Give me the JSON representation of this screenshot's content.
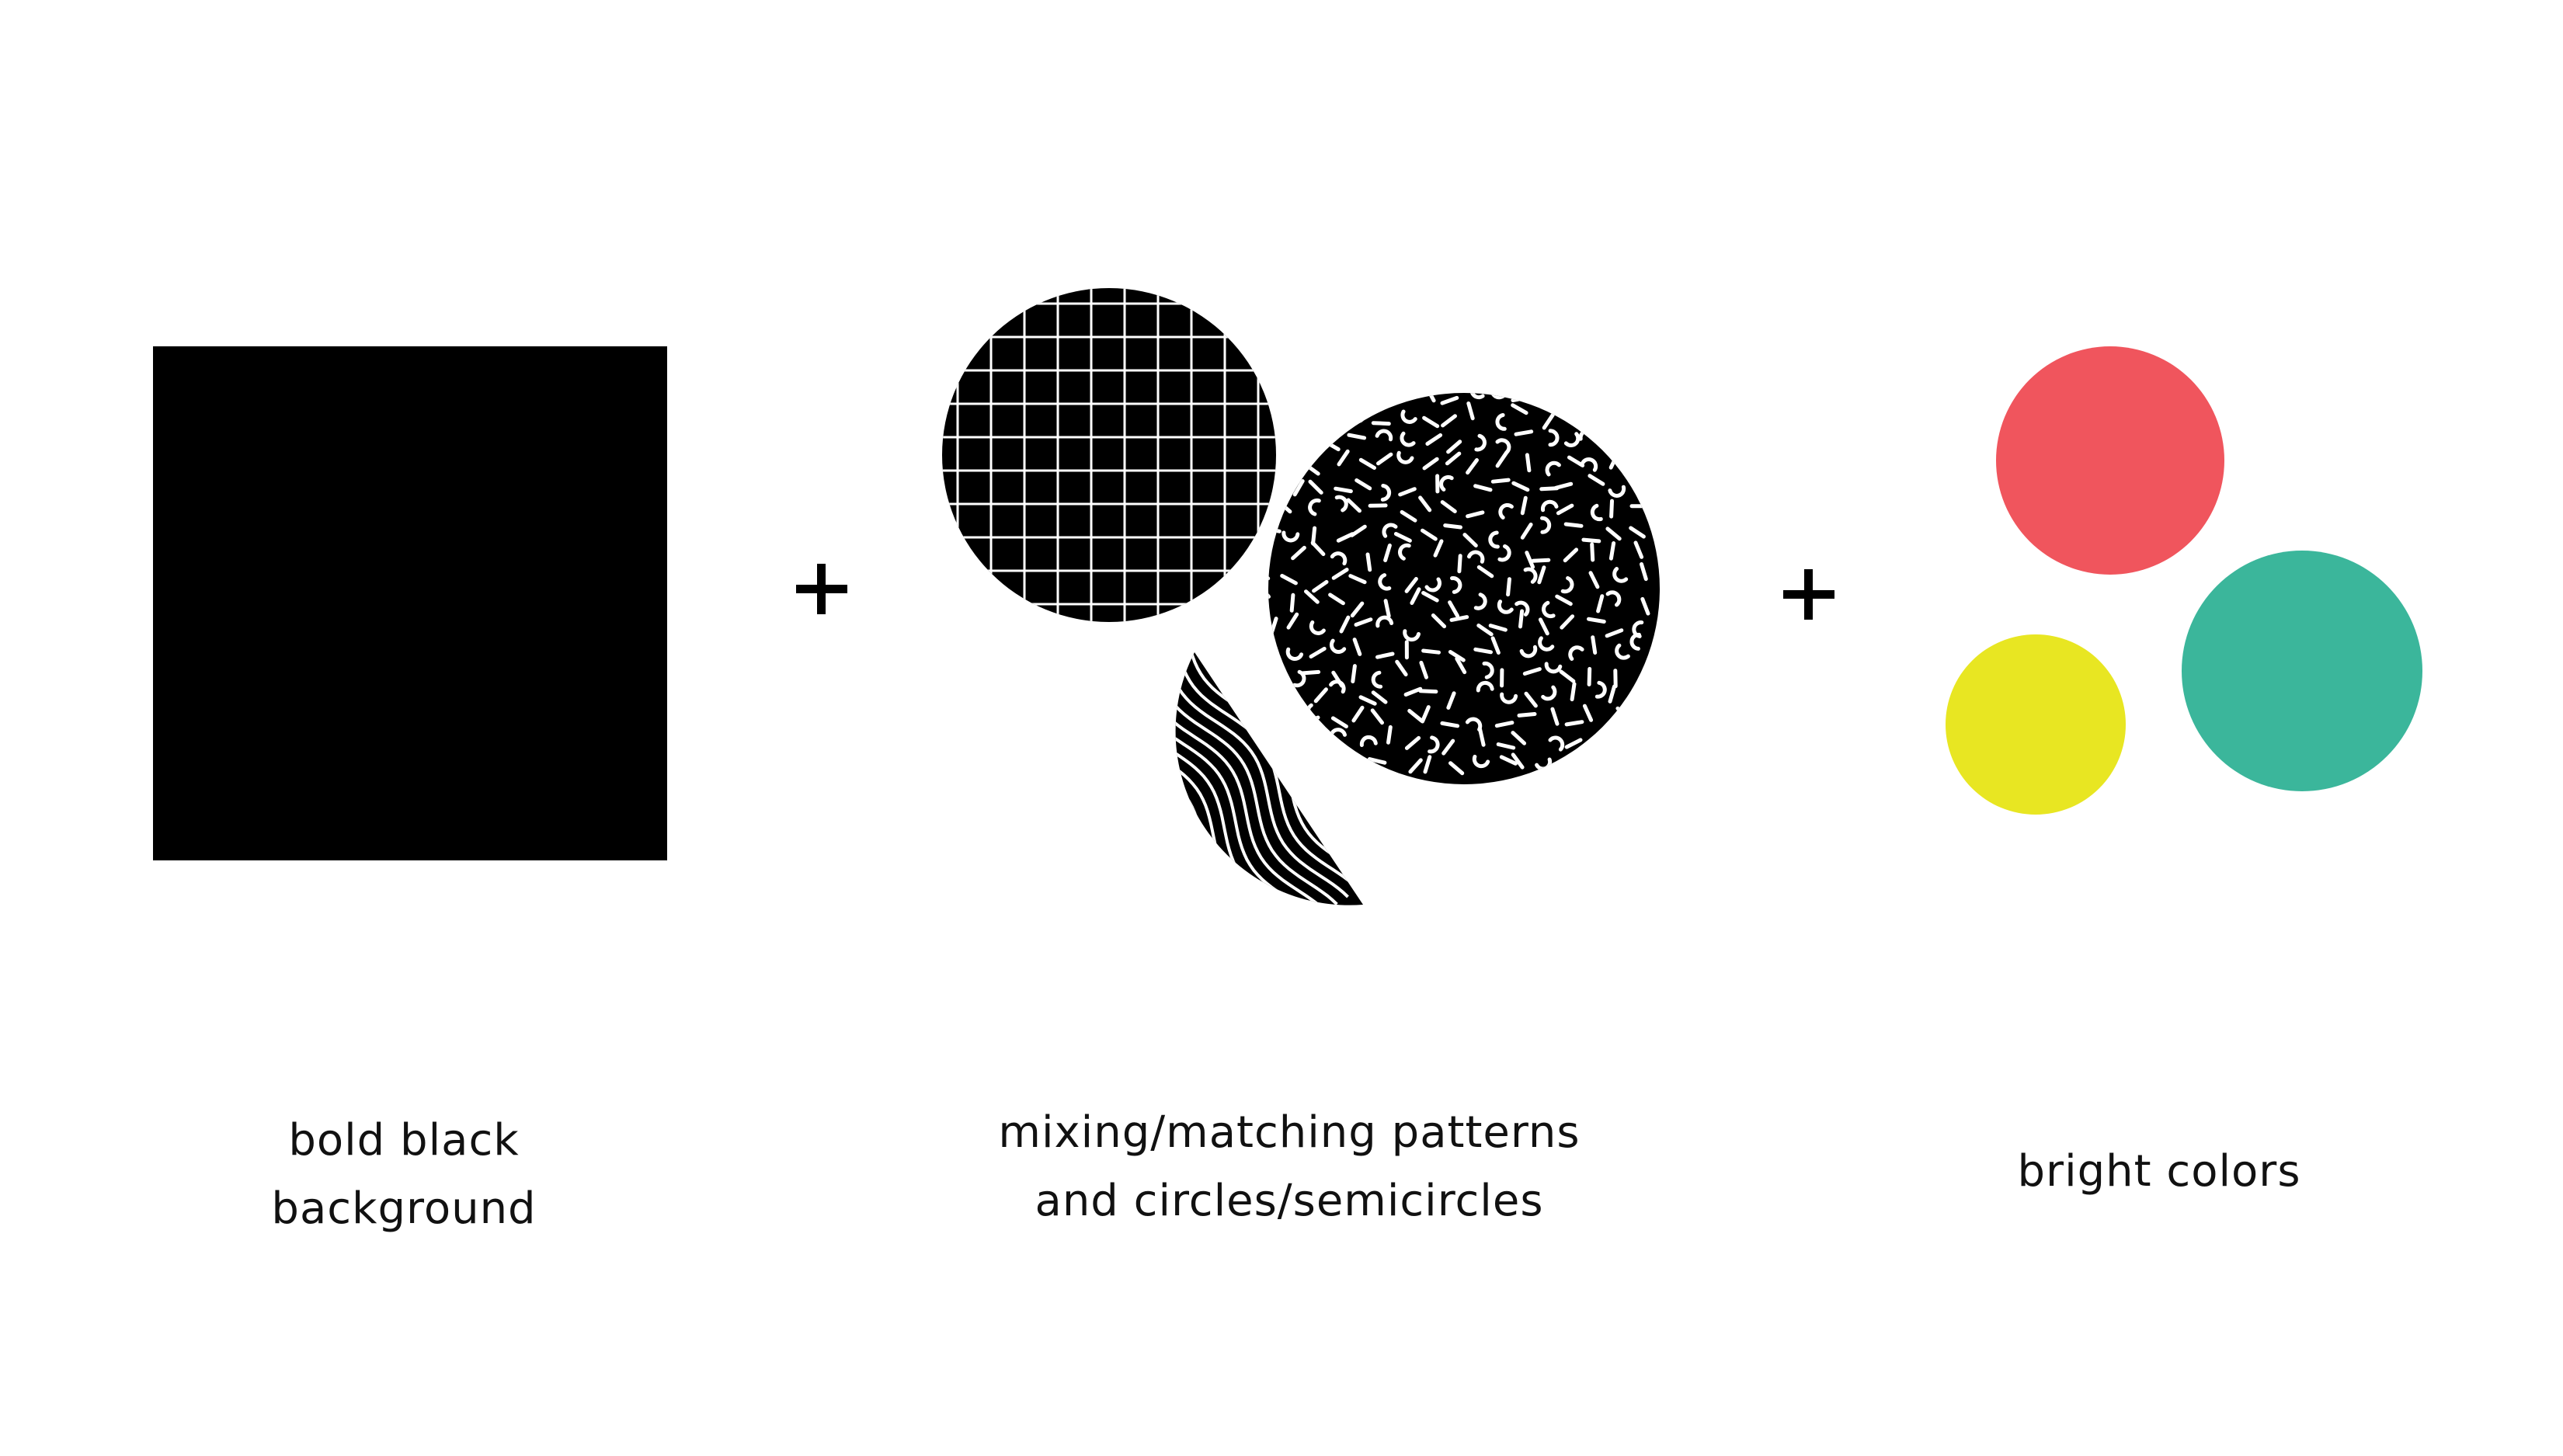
{
  "columns": [
    {
      "id": "black",
      "caption_lines": [
        "bold black",
        "background"
      ]
    },
    {
      "id": "patterns",
      "caption_lines": [
        "mixing/matching patterns",
        "and circles/semicircles"
      ]
    },
    {
      "id": "colors",
      "caption_lines": [
        "bright colors"
      ]
    }
  ],
  "operators": [
    "+",
    "+"
  ],
  "colors": {
    "black": "#000000",
    "pattern_line": "#ffffff",
    "coral": "#f0555d",
    "teal": "#3bb69b",
    "yellow": "#e8e622",
    "text": "#111111"
  },
  "icons": [
    "plus-icon",
    "grid-pattern-circle",
    "confetti-pattern-circle",
    "wave-pattern-semicircle"
  ]
}
